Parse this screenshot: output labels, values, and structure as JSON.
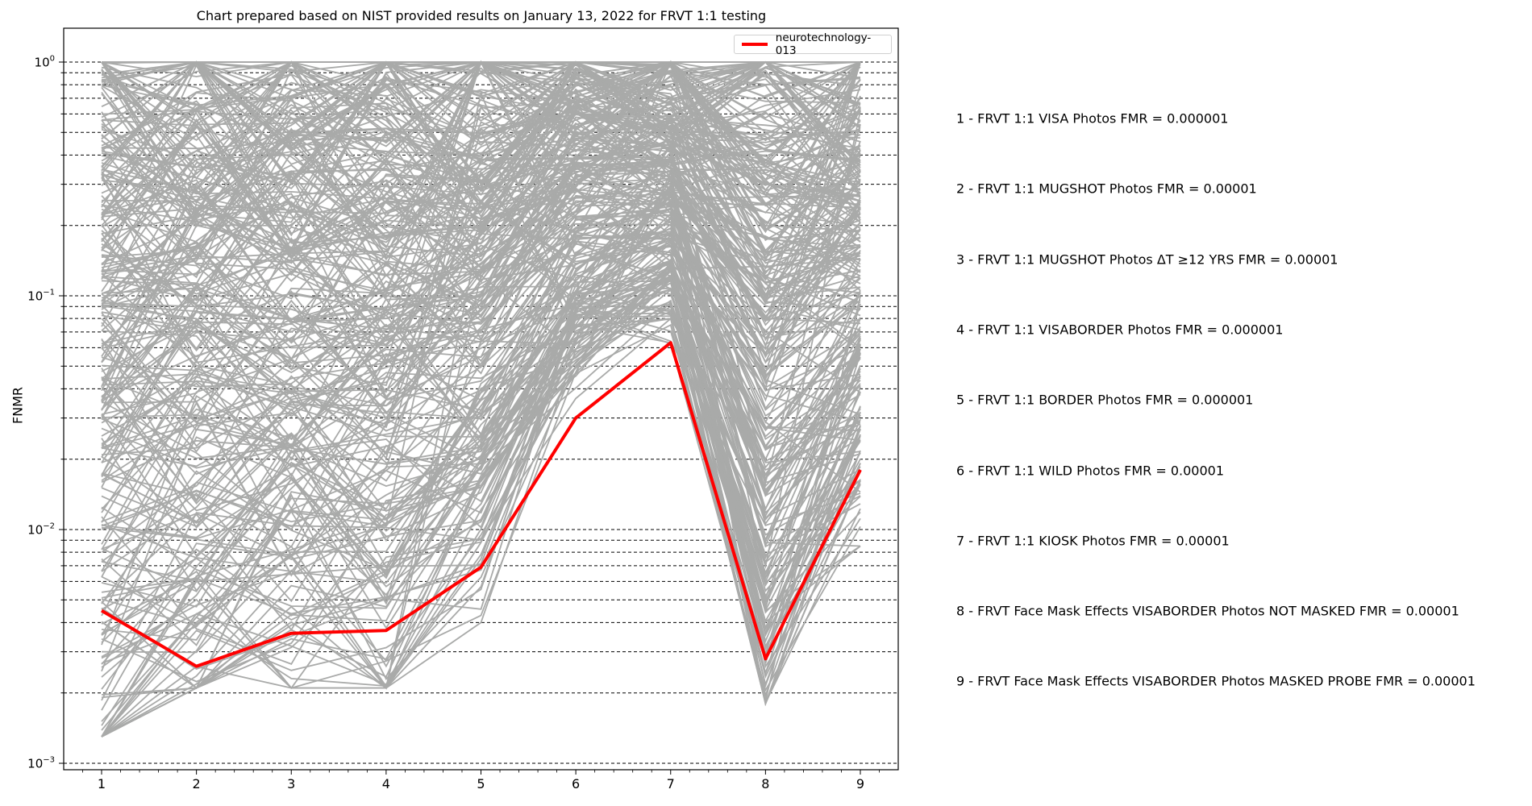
{
  "title": "Chart prepared based on NIST provided results on January 13, 2022 for FRVT 1:1 testing",
  "axes": {
    "ylabel": "FNMR",
    "yscale": "log",
    "y_ticks": [
      {
        "base": "10",
        "exp": "0",
        "value": 1
      },
      {
        "base": "10",
        "exp": "−1",
        "value": 0.1
      },
      {
        "base": "10",
        "exp": "−2",
        "value": 0.01
      },
      {
        "base": "10",
        "exp": "−3",
        "value": 0.001
      }
    ],
    "x_ticks": [
      "1",
      "2",
      "3",
      "4",
      "5",
      "6",
      "7",
      "8",
      "9"
    ]
  },
  "legend": {
    "label": "neurotechnology-013",
    "color": "#ff0000"
  },
  "colors": {
    "highlight": "#ff0000",
    "others": "#a9aaa9",
    "grid": "#000000"
  },
  "descriptions": [
    "1 - FRVT 1:1 VISA Photos FMR = 0.000001",
    "2 - FRVT 1:1 MUGSHOT Photos FMR = 0.00001",
    "3 - FRVT 1:1 MUGSHOT Photos ΔT ≥12 YRS FMR = 0.00001",
    "4 - FRVT 1:1 VISABORDER Photos FMR = 0.000001",
    "5 - FRVT 1:1 BORDER Photos FMR = 0.000001",
    "6 - FRVT 1:1 WILD Photos FMR = 0.00001",
    "7 - FRVT 1:1 KIOSK Photos FMR = 0.00001",
    "8 - FRVT Face Mask Effects VISABORDER Photos NOT MASKED FMR = 0.00001",
    "9 - FRVT Face Mask Effects VISABORDER Photos MASKED PROBE FMR = 0.00001"
  ],
  "chart_data": {
    "type": "line",
    "title": "Chart prepared based on NIST provided results on January 13, 2022 for FRVT 1:1 testing",
    "xlabel": "",
    "ylabel": "FNMR",
    "yscale": "log",
    "ylim": [
      0.00085,
      1.35
    ],
    "xlim": [
      0.6,
      9.4
    ],
    "grid": "horizontal dashed at major and minor log ticks",
    "legend_position": "upper right",
    "x": [
      1,
      2,
      3,
      4,
      5,
      6,
      7,
      8,
      9
    ],
    "x_category_descriptions": [
      "FRVT 1:1 VISA Photos FMR = 0.000001",
      "FRVT 1:1 MUGSHOT Photos FMR = 0.00001",
      "FRVT 1:1 MUGSHOT Photos ΔT ≥12 YRS FMR = 0.00001",
      "FRVT 1:1 VISABORDER Photos FMR = 0.000001",
      "FRVT 1:1 BORDER Photos FMR = 0.000001",
      "FRVT 1:1 WILD Photos FMR = 0.00001",
      "FRVT 1:1 KIOSK Photos FMR = 0.00001",
      "FRVT Face Mask Effects VISABORDER Photos NOT MASKED FMR = 0.00001",
      "FRVT Face Mask Effects VISABORDER Photos MASKED PROBE FMR = 0.00001"
    ],
    "series": [
      {
        "name": "neurotechnology-013",
        "color": "#ff0000",
        "linewidth": 4,
        "values": [
          0.0045,
          0.0026,
          0.0036,
          0.0037,
          0.0069,
          0.03,
          0.063,
          0.0028,
          0.018
        ]
      },
      {
        "name": "other algorithms (unlabeled, ~300 lines)",
        "color": "#a9aaa9",
        "linewidth": 2,
        "range_per_x": [
          [
            0.0013,
            1.0
          ],
          [
            0.0021,
            1.0
          ],
          [
            0.0021,
            1.0
          ],
          [
            0.0021,
            1.0
          ],
          [
            0.004,
            1.0
          ],
          [
            0.03,
            1.0
          ],
          [
            0.05,
            1.0
          ],
          [
            0.0018,
            1.0
          ],
          [
            0.0085,
            1.0
          ]
        ]
      }
    ]
  }
}
